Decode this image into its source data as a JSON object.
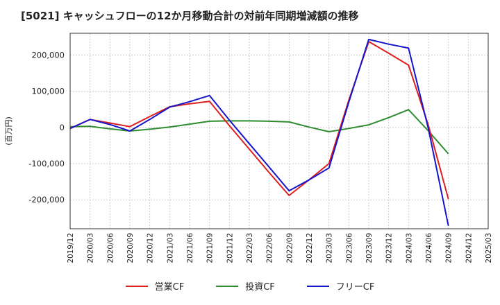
{
  "chart_data": {
    "type": "line",
    "title": "[5021]  キャッシュフローの12か月移動合計の対前年同期増減額の推移",
    "ylabel": "(百万円)",
    "xlabel": "",
    "ylim": [
      -280000,
      260000
    ],
    "yticks": [
      200000,
      100000,
      0,
      -100000,
      -200000
    ],
    "ytick_labels": [
      "200,000",
      "100,000",
      "0",
      "-100,000",
      "-200,000"
    ],
    "categories": [
      "2019/12",
      "2020/03",
      "2020/06",
      "2020/09",
      "2020/12",
      "2021/03",
      "2021/06",
      "2021/09",
      "2021/12",
      "2022/03",
      "2022/06",
      "2022/09",
      "2022/12",
      "2023/03",
      "2023/06",
      "2023/09",
      "2023/12",
      "2024/03",
      "2024/06",
      "2024/09",
      "2024/12",
      "2025/03"
    ],
    "series": [
      {
        "name": "営業CF",
        "color": "#dd1f1f",
        "values": [
          -3000,
          22000,
          12000,
          2000,
          30000,
          57000,
          65000,
          72000,
          5000,
          -60000,
          -125000,
          -188000,
          -145000,
          -100000,
          75000,
          237000,
          205000,
          172000,
          5000,
          -198000,
          null,
          null
        ]
      },
      {
        "name": "投資CF",
        "color": "#2e8b2e",
        "values": [
          2000,
          3000,
          -4000,
          -10000,
          -5000,
          1000,
          9000,
          17000,
          18000,
          18000,
          17000,
          15000,
          1000,
          -12000,
          -3000,
          7000,
          27000,
          49000,
          -10000,
          -73000,
          null,
          null
        ]
      },
      {
        "name": "フリーCF",
        "color": "#1515cc",
        "values": [
          -3000,
          22000,
          8000,
          -10000,
          22000,
          56000,
          71000,
          88000,
          20000,
          -45000,
          -110000,
          -175000,
          -145000,
          -112000,
          70000,
          243000,
          230000,
          219000,
          -5000,
          -272000,
          null,
          null
        ]
      }
    ]
  }
}
